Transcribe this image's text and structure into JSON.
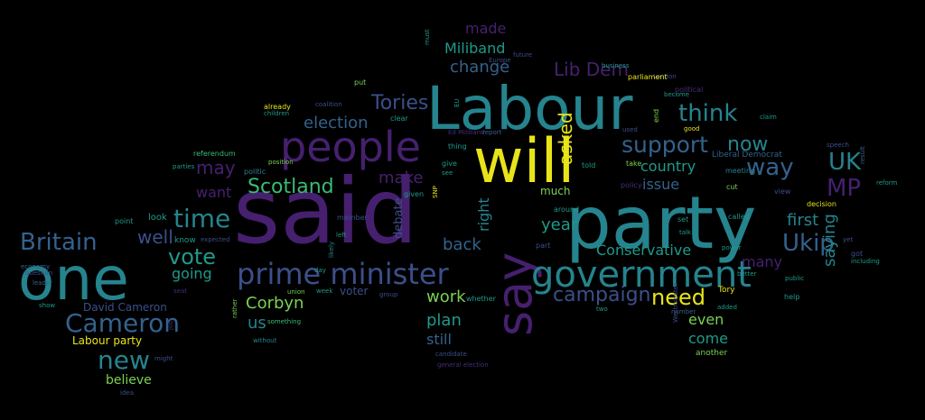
{
  "colors": {
    "background": "#000000",
    "purple": "#46206f",
    "violet": "#472c7a",
    "indigo": "#3b4f8a",
    "blue": "#33628d",
    "teal": "#25848e",
    "cyan": "#1f9a8a",
    "green": "#3bbb75",
    "lime": "#7ad151",
    "yellow": "#e8e419"
  },
  "words": [
    {
      "text": "said",
      "color": "purple"
    },
    {
      "text": "Labour",
      "color": "teal"
    },
    {
      "text": "party",
      "color": "teal"
    },
    {
      "text": "one",
      "color": "teal"
    },
    {
      "text": "will",
      "color": "yellow"
    },
    {
      "text": "people",
      "color": "purple"
    },
    {
      "text": "say",
      "color": "purple"
    },
    {
      "text": "government",
      "color": "teal"
    },
    {
      "text": "prime minister",
      "color": "indigo"
    },
    {
      "text": "Cameron",
      "color": "blue"
    },
    {
      "text": "Britain",
      "color": "blue"
    },
    {
      "text": "time",
      "color": "teal"
    },
    {
      "text": "vote",
      "color": "cyan"
    },
    {
      "text": "Scotland",
      "color": "green"
    },
    {
      "text": "new",
      "color": "teal"
    },
    {
      "text": "need",
      "color": "yellow"
    },
    {
      "text": "support",
      "color": "blue"
    },
    {
      "text": "think",
      "color": "teal"
    },
    {
      "text": "way",
      "color": "blue"
    },
    {
      "text": "UK",
      "color": "teal"
    },
    {
      "text": "MP",
      "color": "purple"
    },
    {
      "text": "Ukip",
      "color": "blue"
    },
    {
      "text": "campaign",
      "color": "indigo"
    },
    {
      "text": "Tories",
      "color": "indigo"
    },
    {
      "text": "election",
      "color": "blue"
    },
    {
      "text": "Miliband",
      "color": "cyan"
    },
    {
      "text": "Lib Dem",
      "color": "purple"
    },
    {
      "text": "change",
      "color": "blue"
    },
    {
      "text": "made",
      "color": "purple"
    },
    {
      "text": "now",
      "color": "teal"
    },
    {
      "text": "saying",
      "color": "teal"
    },
    {
      "text": "country",
      "color": "cyan"
    },
    {
      "text": "issue",
      "color": "blue"
    },
    {
      "text": "may",
      "color": "purple"
    },
    {
      "text": "want",
      "color": "purple"
    },
    {
      "text": "well",
      "color": "indigo"
    },
    {
      "text": "going",
      "color": "cyan"
    },
    {
      "text": "make",
      "color": "purple"
    },
    {
      "text": "right",
      "color": "teal"
    },
    {
      "text": "year",
      "color": "cyan"
    },
    {
      "text": "back",
      "color": "blue"
    },
    {
      "text": "Conservative",
      "color": "cyan"
    },
    {
      "text": "first",
      "color": "teal"
    },
    {
      "text": "asked",
      "color": "yellow"
    },
    {
      "text": "Corbyn",
      "color": "lime"
    },
    {
      "text": "us",
      "color": "teal"
    },
    {
      "text": "work",
      "color": "lime"
    },
    {
      "text": "plan",
      "color": "cyan"
    },
    {
      "text": "still",
      "color": "blue"
    },
    {
      "text": "even",
      "color": "lime"
    },
    {
      "text": "come",
      "color": "cyan"
    },
    {
      "text": "many",
      "color": "purple"
    },
    {
      "text": "much",
      "color": "lime"
    },
    {
      "text": "David Cameron",
      "color": "indigo"
    },
    {
      "text": "Labour party",
      "color": "yellow"
    },
    {
      "text": "believe",
      "color": "lime"
    },
    {
      "text": "debate",
      "color": "indigo"
    },
    {
      "text": "voter",
      "color": "indigo"
    },
    {
      "text": "look",
      "color": "cyan"
    },
    {
      "text": "know",
      "color": "cyan"
    },
    {
      "text": "Tory",
      "color": "yellow"
    },
    {
      "text": "another",
      "color": "lime"
    },
    {
      "text": "political",
      "color": "violet"
    },
    {
      "text": "London",
      "color": "indigo"
    },
    {
      "text": "parliament",
      "color": "yellow"
    },
    {
      "text": "business",
      "color": "cyan"
    },
    {
      "text": "Liberal Democrat",
      "color": "blue"
    },
    {
      "text": "referendum",
      "color": "green"
    },
    {
      "text": "position",
      "color": "lime"
    },
    {
      "text": "politic",
      "color": "teal"
    },
    {
      "text": "clear",
      "color": "cyan"
    },
    {
      "text": "coalition",
      "color": "indigo"
    },
    {
      "text": "already",
      "color": "yellow"
    },
    {
      "text": "put",
      "color": "lime"
    },
    {
      "text": "Ed Miliband",
      "color": "violet"
    },
    {
      "text": "report",
      "color": "blue"
    },
    {
      "text": "thing",
      "color": "cyan"
    },
    {
      "text": "give",
      "color": "cyan"
    },
    {
      "text": "see",
      "color": "cyan"
    },
    {
      "text": "given",
      "color": "cyan"
    },
    {
      "text": "around",
      "color": "cyan"
    },
    {
      "text": "part",
      "color": "indigo"
    },
    {
      "text": "policy",
      "color": "violet"
    },
    {
      "text": "take",
      "color": "lime"
    },
    {
      "text": "told",
      "color": "cyan"
    },
    {
      "text": "used",
      "color": "indigo"
    },
    {
      "text": "end",
      "color": "lime"
    },
    {
      "text": "become",
      "color": "cyan"
    },
    {
      "text": "good",
      "color": "yellow"
    },
    {
      "text": "meeting",
      "color": "teal"
    },
    {
      "text": "cut",
      "color": "lime"
    },
    {
      "text": "view",
      "color": "indigo"
    },
    {
      "text": "decision",
      "color": "yellow"
    },
    {
      "text": "claim",
      "color": "cyan"
    },
    {
      "text": "called",
      "color": "cyan"
    },
    {
      "text": "set",
      "color": "cyan"
    },
    {
      "text": "talk",
      "color": "cyan"
    },
    {
      "text": "power",
      "color": "cyan"
    },
    {
      "text": "better",
      "color": "cyan"
    },
    {
      "text": "help",
      "color": "cyan"
    },
    {
      "text": "public",
      "color": "cyan"
    },
    {
      "text": "number",
      "color": "blue"
    },
    {
      "text": "added",
      "color": "cyan"
    },
    {
      "text": "Westminster",
      "color": "indigo"
    },
    {
      "text": "got",
      "color": "indigo"
    },
    {
      "text": "yet",
      "color": "indigo"
    },
    {
      "text": "including",
      "color": "cyan"
    },
    {
      "text": "reform",
      "color": "cyan"
    },
    {
      "text": "speech",
      "color": "indigo"
    },
    {
      "text": "result",
      "color": "blue"
    },
    {
      "text": "point",
      "color": "cyan"
    },
    {
      "text": "economy",
      "color": "blue"
    },
    {
      "text": "leader",
      "color": "blue"
    },
    {
      "text": "question",
      "color": "indigo"
    },
    {
      "text": "show",
      "color": "cyan"
    },
    {
      "text": "seat",
      "color": "violet"
    },
    {
      "text": "idea",
      "color": "indigo"
    },
    {
      "text": "member",
      "color": "indigo"
    },
    {
      "text": "left",
      "color": "cyan"
    },
    {
      "text": "week",
      "color": "cyan"
    },
    {
      "text": "union",
      "color": "lime"
    },
    {
      "text": "day",
      "color": "cyan"
    },
    {
      "text": "SNP",
      "color": "yellow"
    },
    {
      "text": "rather",
      "color": "lime"
    },
    {
      "text": "something",
      "color": "green"
    },
    {
      "text": "without",
      "color": "teal"
    },
    {
      "text": "group",
      "color": "indigo"
    },
    {
      "text": "whether",
      "color": "cyan"
    },
    {
      "text": "candidate",
      "color": "indigo"
    },
    {
      "text": "general election",
      "color": "violet"
    },
    {
      "text": "two",
      "color": "cyan"
    },
    {
      "text": "parties",
      "color": "cyan"
    },
    {
      "text": "expected",
      "color": "indigo"
    },
    {
      "text": "likely",
      "color": "teal"
    },
    {
      "text": "might",
      "color": "indigo"
    },
    {
      "text": "job",
      "color": "violet"
    },
    {
      "text": "EU",
      "color": "cyan"
    },
    {
      "text": "Europe",
      "color": "indigo"
    },
    {
      "text": "future",
      "color": "indigo"
    },
    {
      "text": "must",
      "color": "cyan"
    },
    {
      "text": "children",
      "color": "cyan"
    },
    {
      "text": "proposal",
      "color": "indigo"
    },
    {
      "text": "last year",
      "color": "cyan"
    }
  ]
}
